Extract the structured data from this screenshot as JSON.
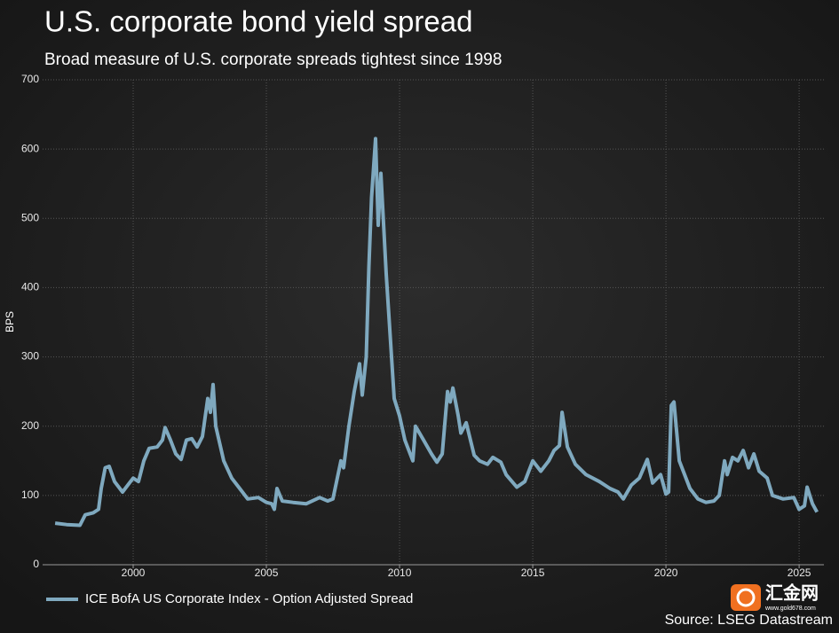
{
  "chart_data": {
    "type": "line",
    "title": "U.S. corporate bond yield spread",
    "subtitle": "Broad measure of U.S. corporate spreads tightest since 1998",
    "y_label": "BPS",
    "source": "Source: LSEG Datastream",
    "x": [
      1997.07,
      1997.5,
      1998.0,
      1998.2,
      1998.5,
      1998.7,
      1998.8,
      1998.95,
      1999.1,
      1999.3,
      1999.6,
      1999.9,
      2000.0,
      2000.2,
      2000.4,
      2000.6,
      2000.9,
      2001.1,
      2001.2,
      2001.4,
      2001.6,
      2001.8,
      2002.0,
      2002.2,
      2002.4,
      2002.6,
      2002.8,
      2002.9,
      2003.0,
      2003.1,
      2003.4,
      2003.7,
      2004.0,
      2004.3,
      2004.7,
      2005.0,
      2005.2,
      2005.3,
      2005.4,
      2005.6,
      2006.0,
      2006.5,
      2007.0,
      2007.3,
      2007.5,
      2007.8,
      2007.9,
      2008.1,
      2008.3,
      2008.5,
      2008.6,
      2008.75,
      2008.85,
      2008.95,
      2009.1,
      2009.2,
      2009.3,
      2009.5,
      2009.7,
      2009.8,
      2010.0,
      2010.2,
      2010.3,
      2010.5,
      2010.6,
      2010.9,
      2011.2,
      2011.4,
      2011.6,
      2011.8,
      2011.9,
      2012.0,
      2012.2,
      2012.3,
      2012.5,
      2012.8,
      2013.0,
      2013.3,
      2013.5,
      2013.8,
      2014.0,
      2014.4,
      2014.7,
      2015.0,
      2015.3,
      2015.6,
      2015.8,
      2016.0,
      2016.1,
      2016.3,
      2016.6,
      2017.0,
      2017.5,
      2017.9,
      2018.2,
      2018.4,
      2018.7,
      2019.0,
      2019.3,
      2019.5,
      2019.8,
      2020.0,
      2020.1,
      2020.2,
      2020.3,
      2020.5,
      2020.7,
      2020.9,
      2021.2,
      2021.5,
      2021.8,
      2022.0,
      2022.2,
      2022.3,
      2022.5,
      2022.7,
      2022.9,
      2023.1,
      2023.3,
      2023.5,
      2023.8,
      2024.0,
      2024.4,
      2024.8,
      2025.0,
      2025.2,
      2025.3,
      2025.5,
      2025.67
    ],
    "series": [
      {
        "name": "ICE BofA US Corporate Index - Option Adjusted Spread",
        "color": "#7fa9bf",
        "values": [
          60,
          58,
          57,
          72,
          75,
          80,
          110,
          140,
          142,
          120,
          105,
          120,
          125,
          120,
          150,
          168,
          170,
          180,
          198,
          180,
          160,
          152,
          180,
          182,
          170,
          185,
          240,
          220,
          260,
          200,
          150,
          125,
          110,
          95,
          97,
          90,
          88,
          80,
          110,
          92,
          90,
          88,
          97,
          92,
          95,
          150,
          140,
          200,
          250,
          290,
          245,
          300,
          430,
          530,
          615,
          490,
          565,
          420,
          300,
          240,
          215,
          180,
          170,
          150,
          200,
          180,
          160,
          148,
          160,
          250,
          235,
          255,
          215,
          190,
          205,
          158,
          150,
          145,
          155,
          148,
          130,
          112,
          120,
          150,
          135,
          150,
          165,
          172,
          220,
          170,
          145,
          130,
          120,
          110,
          105,
          95,
          115,
          125,
          152,
          118,
          130,
          102,
          105,
          230,
          235,
          150,
          130,
          110,
          95,
          90,
          92,
          100,
          150,
          130,
          155,
          150,
          165,
          140,
          160,
          135,
          125,
          100,
          95,
          97,
          80,
          85,
          112,
          88,
          76
        ]
      }
    ],
    "xlim": [
      1996.6,
      2025.93
    ],
    "ylim": [
      0,
      700
    ],
    "xticks": [
      2000,
      2005,
      2010,
      2015,
      2020,
      2025
    ],
    "yticks": [
      0,
      100,
      200,
      300,
      400,
      500,
      600,
      700
    ],
    "grid": true,
    "legend": "bottom-left"
  },
  "watermark": {
    "name": "汇金网",
    "url": "www.gold678.com"
  }
}
